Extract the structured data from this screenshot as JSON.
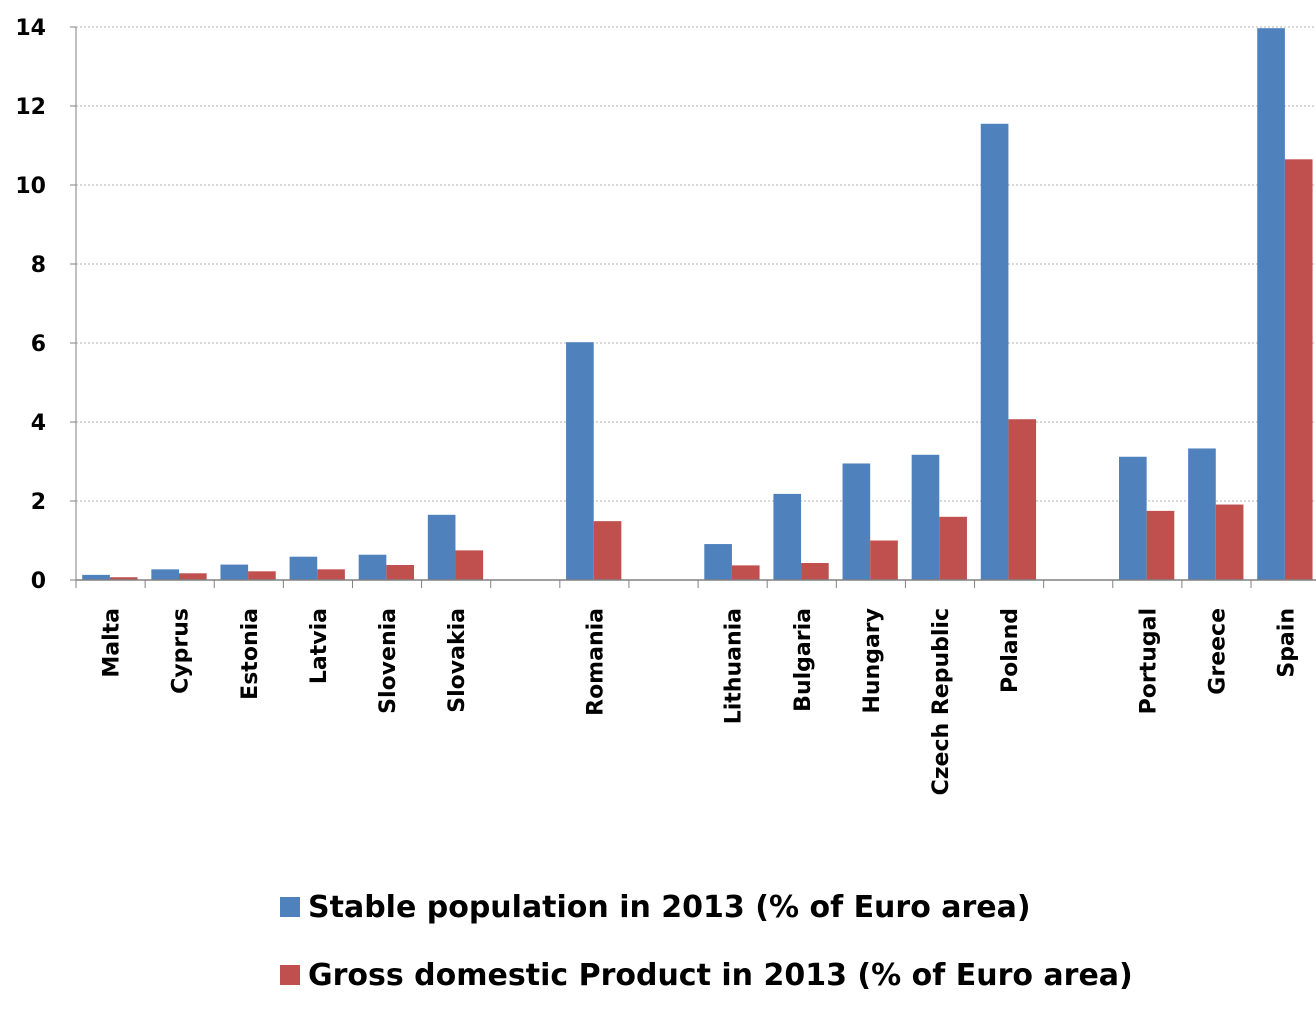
{
  "chart_data": {
    "type": "bar",
    "title": "",
    "xlabel": "",
    "ylabel": "",
    "ylim": [
      0,
      14
    ],
    "yticks": [
      0,
      2,
      4,
      6,
      8,
      10,
      12,
      14
    ],
    "grid": true,
    "legend_position": "bottom",
    "categories": [
      "Malta",
      "Cyprus",
      "Estonia",
      "Latvia",
      "Slovenia",
      "Slovakia",
      "",
      "Romania",
      "",
      "Lithuania",
      "Bulgaria",
      "Hungary",
      "Czech Republic",
      "Poland",
      "",
      "Portugal",
      "Greece",
      "Spain"
    ],
    "series": [
      {
        "name": "Stable population in 2013 (% of Euro area)",
        "color": "#4F81BD",
        "values": [
          0.13,
          0.27,
          0.39,
          0.59,
          0.64,
          1.65,
          null,
          6.02,
          null,
          0.91,
          2.18,
          2.95,
          3.17,
          11.55,
          null,
          3.12,
          3.33,
          13.97
        ]
      },
      {
        "name": "Gross domestic Product in 2013 (% of Euro area)",
        "color": "#C0504D",
        "values": [
          0.07,
          0.17,
          0.22,
          0.27,
          0.38,
          0.75,
          null,
          1.49,
          null,
          0.37,
          0.43,
          1.0,
          1.6,
          4.07,
          null,
          1.75,
          1.91,
          10.65
        ]
      }
    ]
  }
}
